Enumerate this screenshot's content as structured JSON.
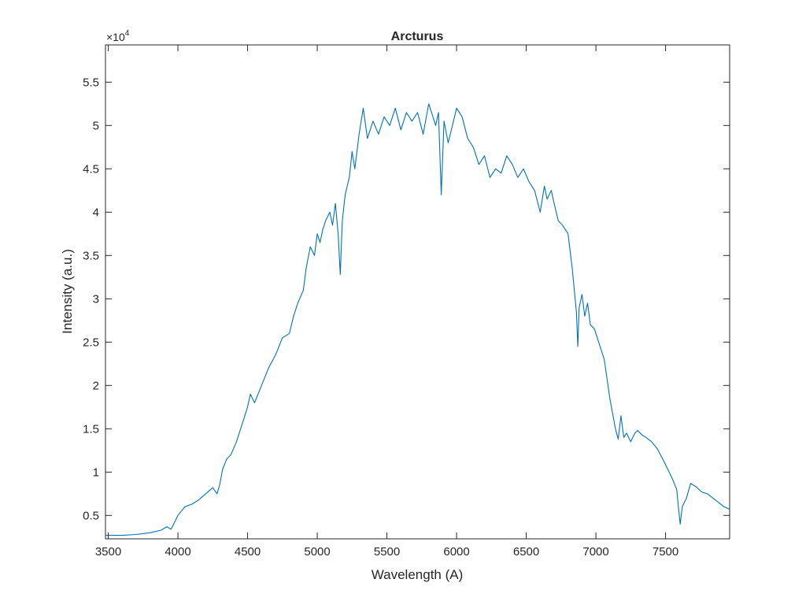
{
  "chart_data": {
    "type": "line",
    "title": "Arcturus",
    "xlabel": "Wavelength (A)",
    "ylabel": "Intensity (a.u.)",
    "y_exponent_label": "×10",
    "y_exponent_power": "4",
    "xlim": [
      3480,
      7960
    ],
    "ylim": [
      2300,
      59300
    ],
    "x_ticks": [
      3500,
      4000,
      4500,
      5000,
      5500,
      6000,
      6500,
      7000,
      7500
    ],
    "x_tick_labels": [
      "3500",
      "4000",
      "4500",
      "5000",
      "5500",
      "6000",
      "6500",
      "7000",
      "7500"
    ],
    "y_ticks": [
      5000,
      10000,
      15000,
      20000,
      25000,
      30000,
      35000,
      40000,
      45000,
      50000,
      55000
    ],
    "y_tick_labels": [
      "0.5",
      "1",
      "1.5",
      "2",
      "2.5",
      "3",
      "3.5",
      "4",
      "4.5",
      "5",
      "5.5"
    ],
    "grid": false,
    "line_color": "#0072bd",
    "series": [
      {
        "x": [
          3480,
          3600,
          3700,
          3800,
          3880,
          3920,
          3950,
          3970,
          4000,
          4050,
          4100,
          4150,
          4200,
          4250,
          4280,
          4300,
          4320,
          4350,
          4380,
          4420,
          4460,
          4500,
          4520,
          4550,
          4600,
          4650,
          4700,
          4750,
          4800,
          4830,
          4860,
          4900,
          4920,
          4950,
          4980,
          5000,
          5020,
          5040,
          5060,
          5090,
          5110,
          5130,
          5150,
          5165,
          5180,
          5200,
          5230,
          5250,
          5270,
          5300,
          5330,
          5360,
          5400,
          5440,
          5480,
          5520,
          5560,
          5600,
          5640,
          5680,
          5720,
          5760,
          5800,
          5830,
          5850,
          5870,
          5890,
          5910,
          5940,
          5970,
          6000,
          6040,
          6080,
          6120,
          6160,
          6200,
          6240,
          6280,
          6320,
          6360,
          6400,
          6440,
          6480,
          6520,
          6560,
          6600,
          6630,
          6650,
          6680,
          6700,
          6730,
          6760,
          6800,
          6830,
          6860,
          6870,
          6880,
          6900,
          6920,
          6940,
          6960,
          6990,
          7020,
          7060,
          7100,
          7140,
          7160,
          7180,
          7200,
          7220,
          7250,
          7280,
          7300,
          7330,
          7360,
          7400,
          7440,
          7480,
          7520,
          7550,
          7580,
          7595,
          7605,
          7620,
          7650,
          7680,
          7720,
          7760,
          7800,
          7840,
          7880,
          7920,
          7960
        ],
        "y": [
          2700,
          2700,
          2800,
          3000,
          3300,
          3700,
          3400,
          4000,
          5000,
          6000,
          6300,
          6800,
          7500,
          8200,
          7500,
          8500,
          10300,
          11500,
          12000,
          13500,
          15500,
          17500,
          19000,
          18000,
          20000,
          22000,
          23500,
          25500,
          26000,
          28000,
          29500,
          31000,
          33500,
          36000,
          35000,
          37500,
          36500,
          38000,
          39000,
          40000,
          38500,
          41000,
          37500,
          32800,
          39000,
          42000,
          44000,
          47000,
          45000,
          49000,
          52000,
          48500,
          50500,
          49000,
          51000,
          50000,
          52000,
          49500,
          51500,
          50500,
          51500,
          49000,
          52500,
          51000,
          50000,
          51500,
          42000,
          50500,
          48000,
          50000,
          52000,
          51000,
          48500,
          47500,
          45500,
          46500,
          44000,
          45000,
          44500,
          46500,
          45500,
          44000,
          45000,
          43500,
          42500,
          40000,
          43000,
          41500,
          42500,
          41000,
          39000,
          38500,
          37500,
          33500,
          28500,
          24500,
          29000,
          30500,
          28000,
          29500,
          27000,
          26500,
          25000,
          23000,
          18500,
          15000,
          13800,
          16500,
          14000,
          14500,
          13500,
          14500,
          14800,
          14300,
          14000,
          13500,
          12700,
          11500,
          10200,
          9200,
          8000,
          5500,
          4000,
          6000,
          7000,
          8700,
          8300,
          7700,
          7500,
          7000,
          6500,
          6000,
          5700
        ]
      }
    ]
  }
}
